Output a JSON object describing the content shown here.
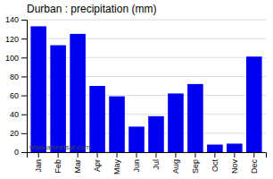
{
  "chart_data": {
    "type": "bar",
    "title": "Durban : precipitation (mm)",
    "categories": [
      "Jan",
      "Feb",
      "Mar",
      "Apr",
      "May",
      "Jun",
      "Jul",
      "Aug",
      "Sep",
      "Oct",
      "Nov",
      "Dec"
    ],
    "values": [
      133,
      113,
      125,
      70,
      59,
      27,
      38,
      62,
      72,
      8,
      9,
      101
    ],
    "color": "#0000ee",
    "ylim": [
      0,
      140
    ],
    "yticks": [
      0,
      20,
      40,
      60,
      80,
      100,
      120,
      140
    ],
    "grid": true,
    "annotations": [
      "www.allmetsat.com"
    ]
  }
}
